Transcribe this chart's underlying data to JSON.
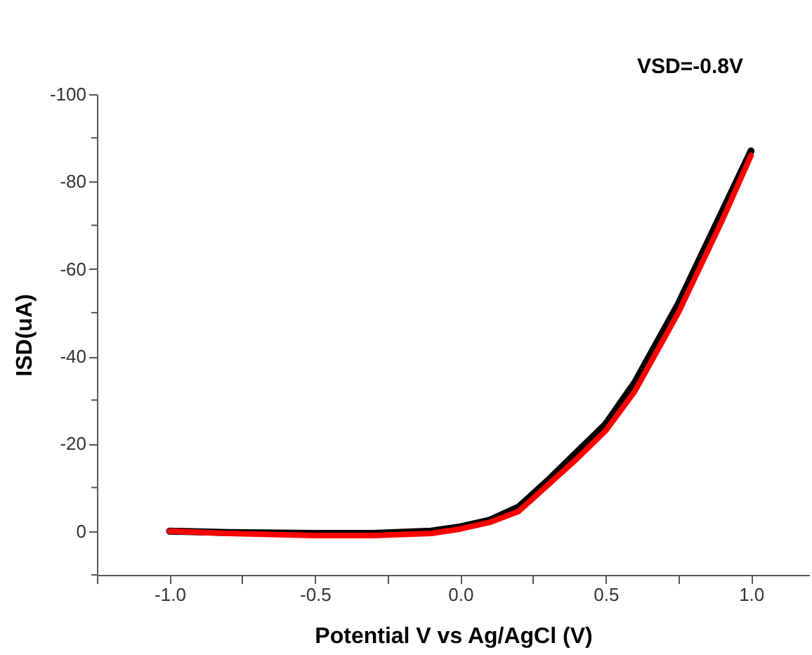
{
  "chart_data": {
    "type": "line",
    "xlabel": "Potential V vs Ag/AgCl (V)",
    "ylabel": "ISD(uA)",
    "annotations": [
      "VSD=-0.8V"
    ],
    "xlim": [
      -1.25,
      1.2
    ],
    "ylim": [
      10,
      -100
    ],
    "xticks": [
      {
        "value": -1.25,
        "label": null
      },
      {
        "value": -1,
        "label": "-1.0"
      },
      {
        "value": -0.75,
        "label": null
      },
      -0.5,
      {
        "value": -0.25,
        "label": null
      },
      {
        "value": 0,
        "label": "0.0"
      },
      {
        "value": 0.25,
        "label": null
      },
      0.5,
      {
        "value": 0.75,
        "label": null
      },
      {
        "value": 1,
        "label": "1.0"
      }
    ],
    "yticks": [
      {
        "value": 10,
        "label": null
      },
      0,
      {
        "value": -10,
        "label": null
      },
      -20,
      {
        "value": -30,
        "label": null
      },
      -40,
      {
        "value": -50,
        "label": null
      },
      -60,
      {
        "value": -70,
        "label": null
      },
      -80,
      {
        "value": -90,
        "label": null
      },
      -100
    ],
    "grid": false,
    "marker": "none",
    "line_style": "solid",
    "series": [
      {
        "color": "#000000",
        "x": [
          -1.0,
          -0.8,
          -0.5,
          -0.3,
          -0.1,
          0.0,
          0.1,
          0.2,
          0.25,
          0.3,
          0.4,
          0.5,
          0.6,
          0.7,
          0.75,
          0.8,
          0.9,
          1.0
        ],
        "values": [
          0,
          0.3,
          0.5,
          0.5,
          0,
          -1,
          -2.5,
          -5.5,
          -8.5,
          -11.5,
          -18,
          -24.5,
          -34,
          -46,
          -52,
          -59,
          -73,
          -87
        ]
      },
      {
        "color": "#ff0000",
        "x": [
          -1.0,
          -0.8,
          -0.5,
          -0.3,
          -0.1,
          0.0,
          0.1,
          0.2,
          0.25,
          0.3,
          0.4,
          0.5,
          0.6,
          0.7,
          0.75,
          0.8,
          0.9,
          1.0
        ],
        "values": [
          0,
          0.5,
          1,
          1,
          0.5,
          -0.5,
          -2,
          -4.5,
          -7.5,
          -10.5,
          -16.5,
          -23,
          -32,
          -44,
          -50,
          -57,
          -71,
          -86
        ]
      }
    ]
  }
}
